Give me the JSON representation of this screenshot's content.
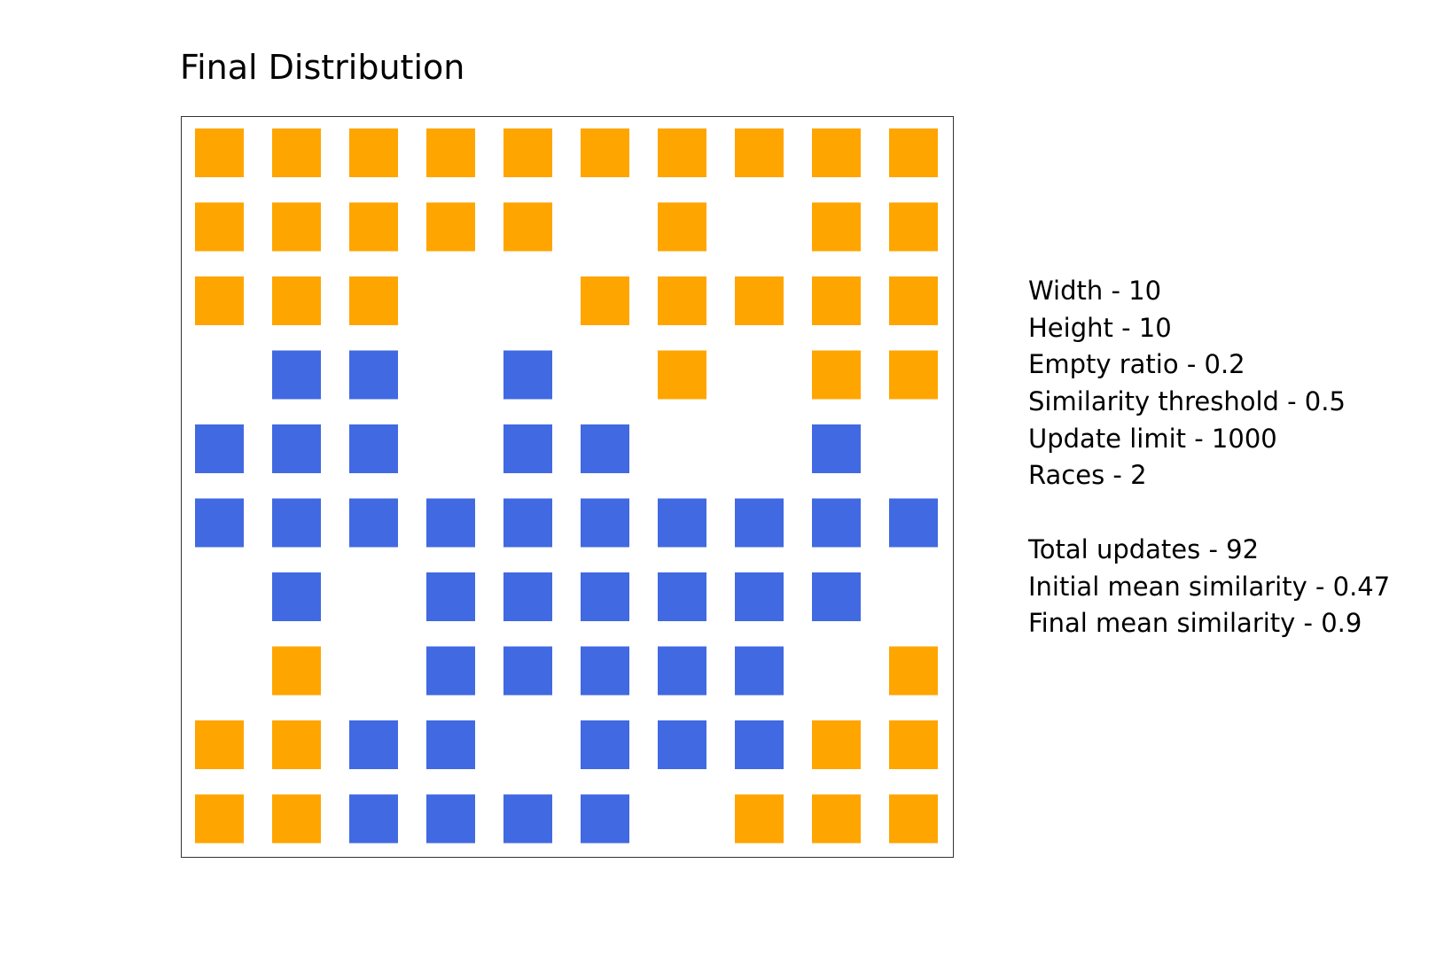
{
  "title": "Final Distribution",
  "colors": {
    "race_1": "#FFA500",
    "race_2": "#4169E1",
    "empty": "#FFFFFF",
    "frame": "#333333"
  },
  "parameters": [
    "Width - 10",
    "Height - 10",
    "Empty ratio - 0.2",
    "Similarity threshold - 0.5",
    "Update limit - 1000",
    "Races - 2"
  ],
  "results": [
    "Total updates - 92",
    "Initial mean similarity - 0.47",
    "Final mean similarity - 0.9"
  ],
  "chart_data": {
    "type": "heatmap",
    "title": "Final Distribution",
    "xlabel": "",
    "ylabel": "",
    "grid": false,
    "legend": "none",
    "width": 10,
    "height": 10,
    "cell_legend": {
      "0": "empty",
      "1": "race_1",
      "2": "race_2"
    },
    "cells": [
      [
        1,
        1,
        1,
        1,
        1,
        1,
        1,
        1,
        1,
        1
      ],
      [
        1,
        1,
        1,
        1,
        1,
        0,
        1,
        0,
        1,
        1
      ],
      [
        1,
        1,
        1,
        0,
        0,
        1,
        1,
        1,
        1,
        1
      ],
      [
        0,
        2,
        2,
        0,
        2,
        0,
        1,
        0,
        1,
        1
      ],
      [
        2,
        2,
        2,
        0,
        2,
        2,
        0,
        0,
        2,
        0
      ],
      [
        2,
        2,
        2,
        2,
        2,
        2,
        2,
        2,
        2,
        2
      ],
      [
        0,
        2,
        0,
        2,
        2,
        2,
        2,
        2,
        2,
        0
      ],
      [
        0,
        1,
        0,
        2,
        2,
        2,
        2,
        2,
        0,
        1
      ],
      [
        1,
        1,
        2,
        2,
        0,
        2,
        2,
        2,
        1,
        1
      ],
      [
        1,
        1,
        2,
        2,
        2,
        2,
        0,
        1,
        1,
        1
      ]
    ]
  }
}
